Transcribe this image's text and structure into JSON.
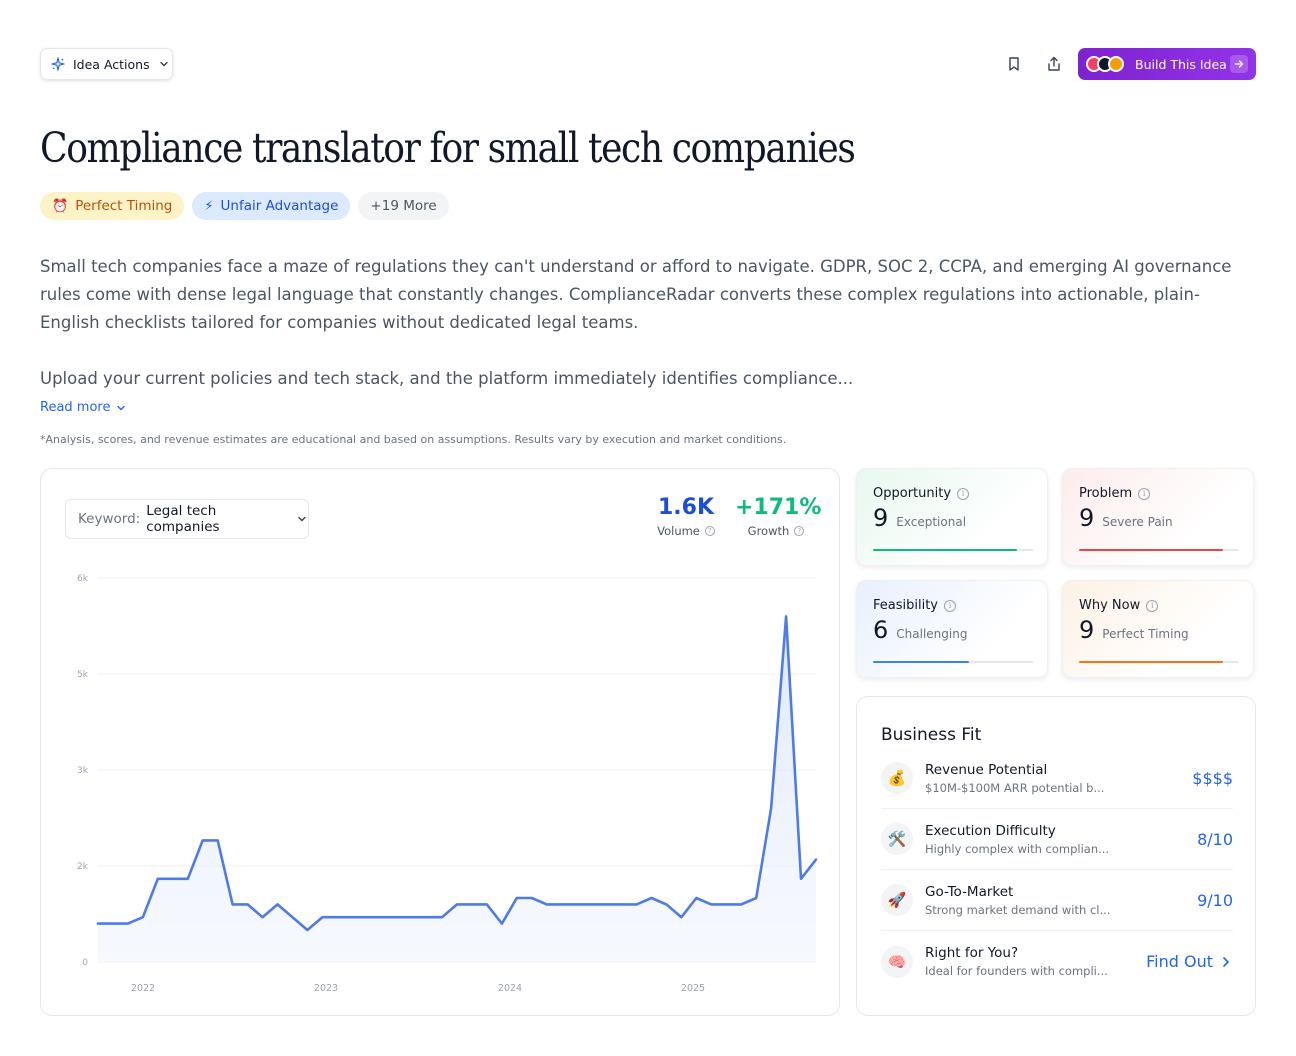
{
  "toolbar": {
    "idea_actions_label": "Idea Actions",
    "build_label": "Build This Idea"
  },
  "title": "Compliance translator for small tech companies",
  "tags": [
    {
      "icon": "alarm-clock-icon",
      "label": "Perfect Timing"
    },
    {
      "icon": "lightning-icon",
      "label": "Unfair Advantage"
    },
    {
      "label": "+19 More"
    }
  ],
  "description": {
    "p1": "Small tech companies face a maze of regulations they can't understand or afford to navigate. GDPR, SOC 2, CCPA, and emerging AI governance rules come with dense legal language that constantly changes. ComplianceRadar converts these complex regulations into actionable, plain-English checklists tailored for companies without dedicated legal teams.",
    "p2": "Upload your current policies and tech stack, and the platform immediately identifies compliance...",
    "read_more": "Read more"
  },
  "disclaimer": "*Analysis, scores, and revenue estimates are educational and based on assumptions. Results vary by execution and market conditions.",
  "trend": {
    "keyword_label": "Keyword:",
    "keyword_value": "Legal tech companies",
    "volume_value": "1.6K",
    "volume_label": "Volume",
    "growth_value": "+171%",
    "growth_label": "Growth"
  },
  "chart_data": {
    "type": "area",
    "title": "",
    "xlabel": "",
    "ylabel": "",
    "y_tick_labels": [
      "0",
      "2k",
      "3k",
      "5k",
      "6k"
    ],
    "x_tick_labels": [
      "2022",
      "2023",
      "2024",
      "2025"
    ],
    "ylim": [
      0,
      6000
    ],
    "grid": true,
    "series": [
      {
        "values": [
          600,
          600,
          600,
          700,
          1300,
          1300,
          1300,
          1900,
          1900,
          900,
          900,
          700,
          900,
          700,
          500,
          700,
          700,
          700,
          700,
          700,
          700,
          700,
          700,
          700,
          900,
          900,
          900,
          600,
          1000,
          1000,
          900,
          900,
          900,
          900,
          900,
          900,
          900,
          1000,
          900,
          700,
          1000,
          900,
          900,
          900,
          1000,
          2400,
          5400,
          1300,
          1600
        ]
      }
    ],
    "color": "#4f7be6"
  },
  "scores": [
    {
      "name": "Opportunity",
      "score": "9",
      "word": "Exceptional",
      "fraction": 0.9,
      "color": "#10b981",
      "bg": "linear-gradient(135deg,#e7f8ef 0%,#ffffff 70%)"
    },
    {
      "name": "Problem",
      "score": "9",
      "word": "Severe Pain",
      "fraction": 0.9,
      "color": "#ef4444",
      "bg": "linear-gradient(135deg,#fdecec 0%,#ffffff 70%)"
    },
    {
      "name": "Feasibility",
      "score": "6",
      "word": "Challenging",
      "fraction": 0.6,
      "color": "#3b82f6",
      "bg": "linear-gradient(135deg,#e8f0fd 0%,#ffffff 70%)"
    },
    {
      "name": "Why Now",
      "score": "9",
      "word": "Perfect Timing",
      "fraction": 0.9,
      "color": "#f97316",
      "bg": "linear-gradient(135deg,#fef1e4 0%,#ffffff 70%)"
    }
  ],
  "business_fit": {
    "title": "Business Fit",
    "rows": [
      {
        "icon": "money-bag-icon",
        "name": "Revenue Potential",
        "sub": "$10M-$100M ARR potential b...",
        "value": "$$$$"
      },
      {
        "icon": "tools-icon",
        "name": "Execution Difficulty",
        "sub": "Highly complex with complian...",
        "value": "8/10"
      },
      {
        "icon": "rocket-icon",
        "name": "Go-To-Market",
        "sub": "Strong market demand with cl...",
        "value": "9/10"
      },
      {
        "icon": "brain-icon",
        "name": "Right for You?",
        "sub": "Ideal for founders with compli...",
        "value": "Find Out"
      }
    ]
  }
}
